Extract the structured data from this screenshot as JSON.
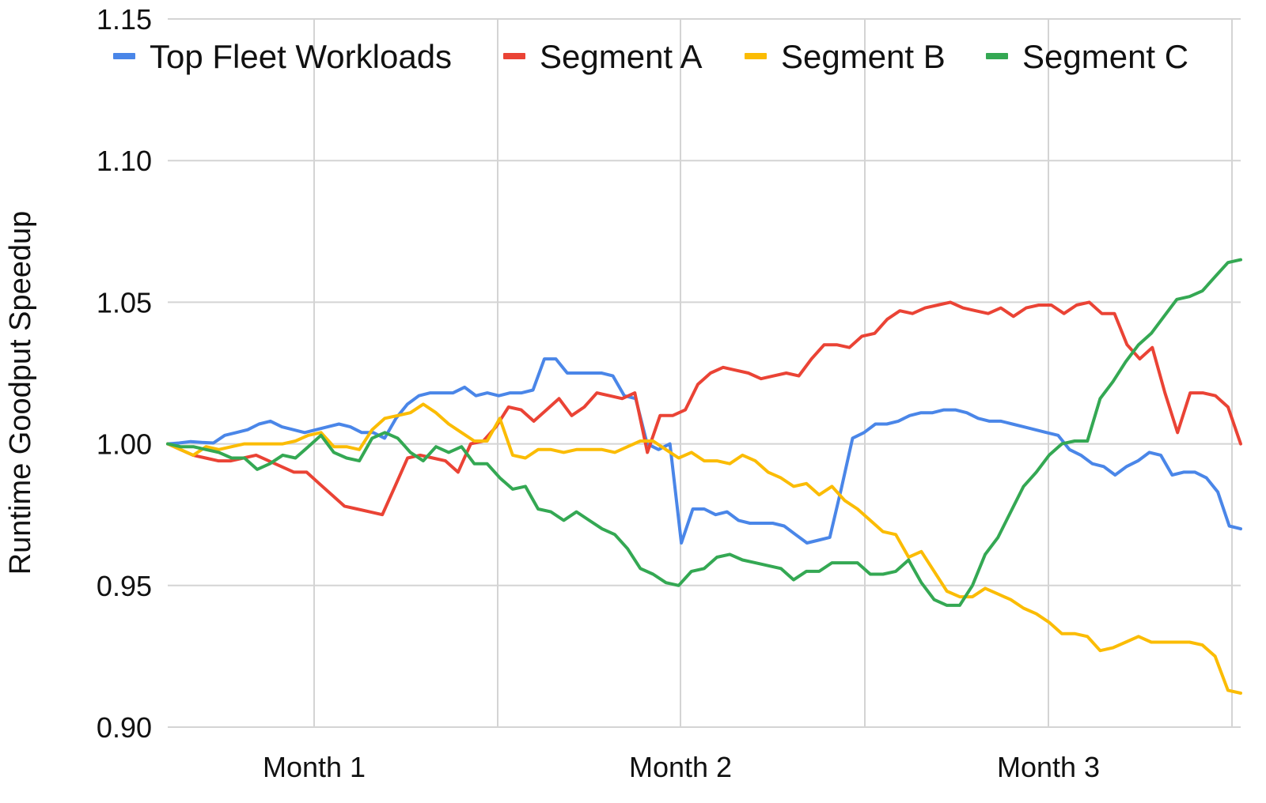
{
  "chart_data": {
    "type": "line",
    "title": "",
    "xlabel": "",
    "ylabel": "Runtime Goodput Speedup",
    "ylim": [
      0.9,
      1.15
    ],
    "yticks": [
      "0.90",
      "0.95",
      "1.00",
      "1.05",
      "1.10",
      "1.15"
    ],
    "xticks": [
      "Month 1",
      "Month 2",
      "Month 3"
    ],
    "grid": true,
    "legend_position": "top",
    "series": [
      {
        "name": "Top Fleet Workloads",
        "color": "#4a86e8",
        "values": [
          1.0,
          1.0003,
          1.0008,
          1.0005,
          1.0003,
          1.003,
          1.004,
          1.005,
          1.007,
          1.008,
          1.006,
          1.005,
          1.004,
          1.005,
          1.006,
          1.007,
          1.006,
          1.004,
          1.004,
          1.002,
          1.009,
          1.014,
          1.017,
          1.018,
          1.018,
          1.018,
          1.02,
          1.017,
          1.018,
          1.017,
          1.018,
          1.018,
          1.019,
          1.03,
          1.03,
          1.025,
          1.025,
          1.025,
          1.025,
          1.024,
          1.017,
          1.016,
          1.0,
          0.998,
          1.0,
          0.965,
          0.977,
          0.977,
          0.975,
          0.976,
          0.973,
          0.972,
          0.972,
          0.972,
          0.971,
          0.968,
          0.965,
          0.966,
          0.967,
          0.984,
          1.002,
          1.004,
          1.007,
          1.007,
          1.008,
          1.01,
          1.011,
          1.011,
          1.012,
          1.012,
          1.011,
          1.009,
          1.008,
          1.008,
          1.007,
          1.006,
          1.005,
          1.004,
          1.003,
          0.998,
          0.996,
          0.993,
          0.992,
          0.989,
          0.992,
          0.994,
          0.997,
          0.996,
          0.989,
          0.99,
          0.99,
          0.988,
          0.983,
          0.971,
          0.97
        ]
      },
      {
        "name": "Segment A",
        "color": "#ea4335",
        "values": [
          1.0,
          0.998,
          0.996,
          0.995,
          0.994,
          0.994,
          0.995,
          0.996,
          0.994,
          0.992,
          0.99,
          0.99,
          0.986,
          0.982,
          0.978,
          0.977,
          0.976,
          0.975,
          0.985,
          0.995,
          0.996,
          0.995,
          0.994,
          0.99,
          1.0,
          1.001,
          1.006,
          1.013,
          1.012,
          1.008,
          1.012,
          1.016,
          1.01,
          1.013,
          1.018,
          1.017,
          1.016,
          1.018,
          0.997,
          1.01,
          1.01,
          1.012,
          1.021,
          1.025,
          1.027,
          1.026,
          1.025,
          1.023,
          1.024,
          1.025,
          1.024,
          1.03,
          1.035,
          1.035,
          1.034,
          1.038,
          1.039,
          1.044,
          1.047,
          1.046,
          1.048,
          1.049,
          1.05,
          1.048,
          1.047,
          1.046,
          1.048,
          1.045,
          1.048,
          1.049,
          1.049,
          1.046,
          1.049,
          1.05,
          1.046,
          1.046,
          1.035,
          1.03,
          1.034,
          1.018,
          1.004,
          1.018,
          1.018,
          1.017,
          1.013,
          1.0
        ]
      },
      {
        "name": "Segment B",
        "color": "#fbbc04",
        "values": [
          1.0,
          0.998,
          0.996,
          0.999,
          0.998,
          0.999,
          1.0,
          1.0,
          1.0,
          1.0,
          1.001,
          1.003,
          1.004,
          0.999,
          0.999,
          0.998,
          1.005,
          1.009,
          1.01,
          1.011,
          1.014,
          1.011,
          1.007,
          1.004,
          1.001,
          1.001,
          1.009,
          0.996,
          0.995,
          0.998,
          0.998,
          0.997,
          0.998,
          0.998,
          0.998,
          0.997,
          0.999,
          1.001,
          1.001,
          0.998,
          0.995,
          0.997,
          0.994,
          0.994,
          0.993,
          0.996,
          0.994,
          0.99,
          0.988,
          0.985,
          0.986,
          0.982,
          0.985,
          0.98,
          0.977,
          0.973,
          0.969,
          0.968,
          0.96,
          0.962,
          0.955,
          0.948,
          0.946,
          0.946,
          0.949,
          0.947,
          0.945,
          0.942,
          0.94,
          0.937,
          0.933,
          0.933,
          0.932,
          0.927,
          0.928,
          0.93,
          0.932,
          0.93,
          0.93,
          0.93,
          0.93,
          0.929,
          0.925,
          0.913,
          0.912
        ]
      },
      {
        "name": "Segment C",
        "color": "#34a853",
        "values": [
          1.0,
          0.999,
          0.999,
          0.998,
          0.997,
          0.995,
          0.995,
          0.991,
          0.993,
          0.996,
          0.995,
          0.999,
          1.003,
          0.997,
          0.995,
          0.994,
          1.002,
          1.004,
          1.002,
          0.997,
          0.994,
          0.999,
          0.997,
          0.999,
          0.993,
          0.993,
          0.988,
          0.984,
          0.985,
          0.977,
          0.976,
          0.973,
          0.976,
          0.973,
          0.97,
          0.968,
          0.963,
          0.956,
          0.954,
          0.951,
          0.95,
          0.955,
          0.956,
          0.96,
          0.961,
          0.959,
          0.958,
          0.957,
          0.956,
          0.952,
          0.955,
          0.955,
          0.958,
          0.958,
          0.958,
          0.954,
          0.954,
          0.955,
          0.959,
          0.951,
          0.945,
          0.943,
          0.943,
          0.95,
          0.961,
          0.967,
          0.976,
          0.985,
          0.99,
          0.996,
          1.0,
          1.001,
          1.001,
          1.016,
          1.022,
          1.029,
          1.035,
          1.039,
          1.045,
          1.051,
          1.052,
          1.054,
          1.059,
          1.064,
          1.065
        ]
      }
    ]
  }
}
